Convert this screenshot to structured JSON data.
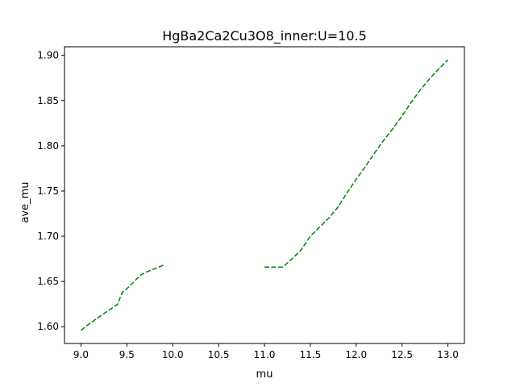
{
  "chart_data": {
    "type": "line",
    "title": "HgBa2Ca2Cu3O8_inner:U=10.5",
    "xlabel": "mu",
    "ylabel": "ave_mu",
    "xlim": [
      8.82,
      13.18
    ],
    "ylim": [
      1.5815,
      1.9095
    ],
    "xticks": [
      "9.0",
      "9.5",
      "10.0",
      "10.5",
      "11.0",
      "11.5",
      "12.0",
      "12.5",
      "13.0"
    ],
    "yticks": [
      "1.60",
      "1.65",
      "1.70",
      "1.75",
      "1.80",
      "1.85",
      "1.90"
    ],
    "grid": false,
    "line_color": "#008000",
    "line_style": "dashed",
    "series": [
      {
        "segments": [
          {
            "x": [
              9.0,
              9.1,
              9.2,
              9.3,
              9.4,
              9.41,
              9.45,
              9.5,
              9.55,
              9.6,
              9.65,
              9.7,
              9.75,
              9.8,
              9.85,
              9.9
            ],
            "y": [
              1.596,
              1.604,
              1.611,
              1.618,
              1.625,
              1.628,
              1.638,
              1.642,
              1.647,
              1.652,
              1.657,
              1.66,
              1.662,
              1.664,
              1.666,
              1.668
            ]
          },
          {
            "x": [
              11.0,
              11.1,
              11.2,
              11.3,
              11.4,
              11.5,
              11.6,
              11.7,
              11.8,
              11.9,
              12.0,
              12.1,
              12.2,
              12.3,
              12.4,
              12.5,
              12.6,
              12.7,
              12.8,
              12.9,
              13.0
            ],
            "y": [
              1.666,
              1.666,
              1.666,
              1.675,
              1.685,
              1.7,
              1.71,
              1.72,
              1.732,
              1.748,
              1.763,
              1.777,
              1.792,
              1.806,
              1.819,
              1.833,
              1.848,
              1.862,
              1.874,
              1.885,
              1.895
            ]
          }
        ]
      }
    ]
  }
}
